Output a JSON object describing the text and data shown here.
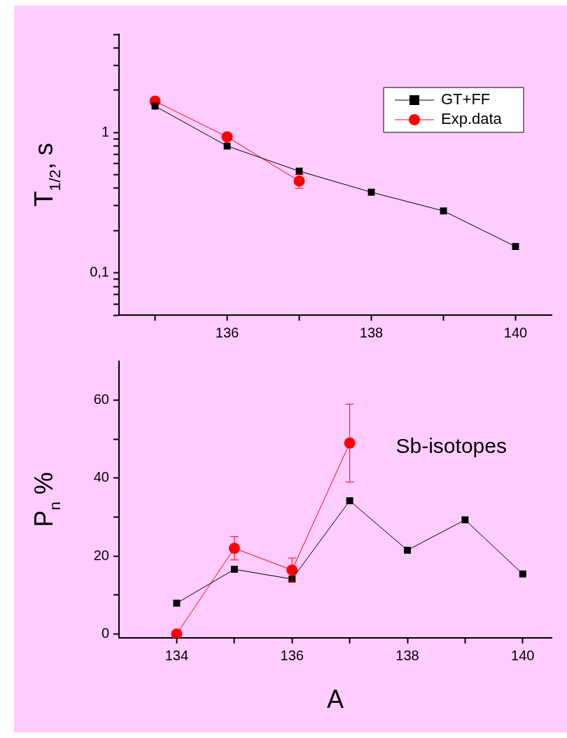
{
  "chart_data": [
    {
      "type": "line",
      "ylabel": "T$_{1/2}$, s",
      "log": "y",
      "grid": false,
      "legend": "top right",
      "xlim": [
        134.5,
        140.5
      ],
      "xticks": [
        {
          "value": 135,
          "label": null
        },
        136,
        {
          "value": 137,
          "label": null
        },
        138,
        {
          "value": 139,
          "label": null
        },
        140
      ],
      "ylim": [
        0.05,
        5
      ],
      "yticks": [
        {
          "value": 0.05,
          "label": null
        },
        {
          "value": 0.06,
          "label": null
        },
        {
          "value": 0.07,
          "label": null
        },
        {
          "value": 0.08,
          "label": null
        },
        {
          "value": 0.09,
          "label": null
        },
        {
          "value": 0.1,
          "label": "0,1"
        },
        {
          "value": 0.2,
          "label": null
        },
        {
          "value": 0.3,
          "label": null
        },
        {
          "value": 0.4,
          "label": null
        },
        {
          "value": 0.5,
          "label": null
        },
        {
          "value": 0.6,
          "label": null
        },
        {
          "value": 0.7,
          "label": null
        },
        {
          "value": 0.8,
          "label": null
        },
        {
          "value": 0.9,
          "label": null
        },
        1,
        {
          "value": 2,
          "label": null
        },
        {
          "value": 3,
          "label": null
        },
        {
          "value": 4,
          "label": null
        },
        {
          "value": 5,
          "label": null
        }
      ],
      "series": [
        {
          "name": "GT+FF",
          "color": "#000000",
          "marker": "square",
          "x": [
            135,
            136,
            137,
            138,
            139,
            140
          ],
          "values": [
            1.54,
            0.8,
            0.53,
            0.375,
            0.276,
            0.154
          ]
        },
        {
          "name": "Exp.data",
          "color": "#ff0000",
          "marker": "circle",
          "x": [
            135,
            136,
            137
          ],
          "values": [
            1.67,
            0.93,
            0.45
          ],
          "errors": [
            null,
            null,
            [
              0.4,
              0.5
            ]
          ]
        }
      ]
    },
    {
      "type": "line",
      "xlabel": "A",
      "ylabel": "P$_{n}$ %",
      "grid": false,
      "annotations": [
        "Sb-isotopes"
      ],
      "xlim": [
        133,
        140.5
      ],
      "xticks": [
        134,
        {
          "value": 135,
          "label": null
        },
        136,
        {
          "value": 137,
          "label": null
        },
        138,
        {
          "value": 139,
          "label": null
        },
        140
      ],
      "ylim": [
        -1,
        70
      ],
      "yticks": [
        0,
        {
          "value": 10,
          "label": null
        },
        20,
        {
          "value": 30,
          "label": null
        },
        40,
        {
          "value": 50,
          "label": null
        },
        60
      ],
      "series": [
        {
          "color": "#000000",
          "marker": "square",
          "x": [
            134,
            135,
            136,
            137,
            138,
            139,
            140
          ],
          "values": [
            7.9,
            16.6,
            14.1,
            34.2,
            21.5,
            29.3,
            15.4
          ]
        },
        {
          "color": "#ff0000",
          "marker": "circle",
          "x": [
            134,
            135,
            136,
            137
          ],
          "values": [
            0,
            22,
            16.4,
            49
          ],
          "errors": [
            null,
            [
              19,
              25
            ],
            [
              13.5,
              19.5
            ],
            [
              39,
              59
            ]
          ]
        }
      ]
    }
  ]
}
